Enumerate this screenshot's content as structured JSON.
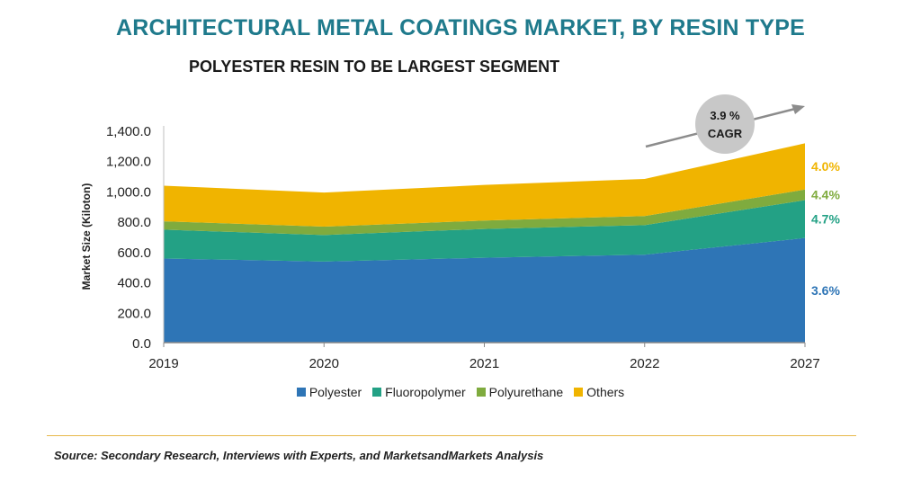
{
  "title": "ARCHITECTURAL METAL COATINGS MARKET, BY RESIN TYPE",
  "subtitle": "POLYESTER RESIN TO BE LARGEST SEGMENT",
  "source": "Source: Secondary Research, Interviews with Experts, and MarketsandMarkets Analysis",
  "chart_data": {
    "type": "area",
    "stacked": true,
    "x": [
      "2019",
      "2020",
      "2021",
      "2022",
      "2027"
    ],
    "ylabel": "Market Size (Kiloton)",
    "ylim": [
      0,
      1400
    ],
    "yticks": [
      "0.0",
      "200.0",
      "400.0",
      "600.0",
      "800.0",
      "1,000.0",
      "1,200.0",
      "1,400.0"
    ],
    "series": [
      {
        "name": "Polyester",
        "values": [
          555,
          535,
          560,
          580,
          690
        ],
        "color": "#2e75b6",
        "cagr": "3.6%"
      },
      {
        "name": "Fluoropolymer",
        "values": [
          190,
          175,
          190,
          195,
          250
        ],
        "color": "#23a185",
        "cagr": "4.7%"
      },
      {
        "name": "Polyurethane",
        "values": [
          55,
          55,
          55,
          60,
          70
        ],
        "color": "#7fab3e",
        "cagr": "4.4%"
      },
      {
        "name": "Others",
        "values": [
          235,
          225,
          235,
          245,
          305
        ],
        "color": "#f0b400",
        "cagr": "4.0%"
      }
    ],
    "cagr_badge": {
      "value": "3.9 %",
      "label": "CAGR"
    },
    "legend_position": "bottom",
    "grid": false
  }
}
